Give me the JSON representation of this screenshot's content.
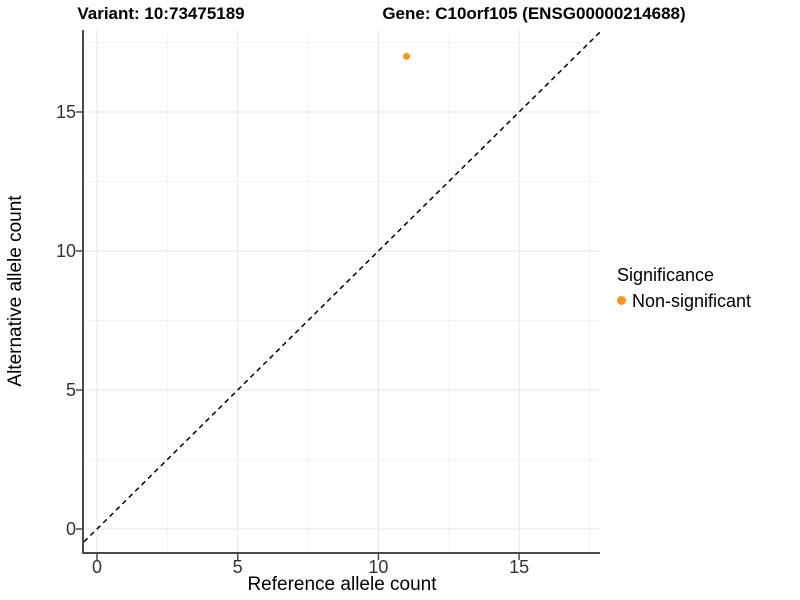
{
  "titles": {
    "variant": "Variant: 10:73475189",
    "gene": "Gene: C10orf105 (ENSG00000214688)"
  },
  "axes": {
    "x_label": "Reference allele count",
    "y_label": "Alternative allele count",
    "x_tick_labels": [
      "0",
      "5",
      "10",
      "15"
    ],
    "y_tick_labels": [
      "0",
      "5",
      "10",
      "15"
    ]
  },
  "legend": {
    "title": "Significance",
    "items": [
      {
        "label": "Non-significant",
        "color": "#F8951F",
        "marker": "circle-icon"
      }
    ]
  },
  "chart_data": {
    "type": "scatter",
    "title_left": "Variant: 10:73475189",
    "title_right": "Gene: C10orf105 (ENSG00000214688)",
    "xlabel": "Reference allele count",
    "ylabel": "Alternative allele count",
    "x_ticks": [
      0,
      5,
      10,
      15
    ],
    "y_ticks": [
      0,
      5,
      10,
      15
    ],
    "minor_tick_offset": 2.5,
    "xlim": [
      -0.46,
      17.88
    ],
    "ylim": [
      -0.83,
      17.95
    ],
    "grid": "major+minor",
    "legend_position": "right",
    "series": [
      {
        "name": "Non-significant",
        "color": "#F8951F",
        "points": [
          {
            "x": 11,
            "y": 17
          }
        ]
      }
    ],
    "reference_line": {
      "slope": 1,
      "intercept": 0,
      "style": "dashed",
      "color": "#000000"
    }
  },
  "colors": {
    "major_grid": "#E6E6E6",
    "minor_grid": "#F3F3F3",
    "axis_line": "#4A4A4A",
    "tick_mark": "#4A4A4A",
    "tick_label": "#333333",
    "point": "#F8951F"
  }
}
